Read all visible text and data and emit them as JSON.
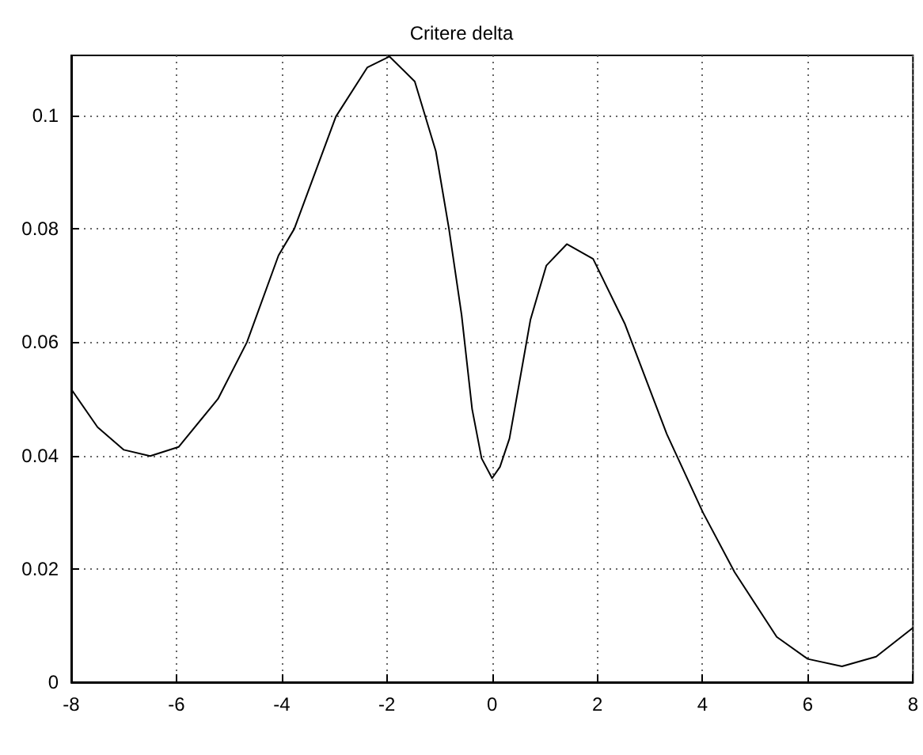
{
  "chart_data": {
    "type": "line",
    "title": "Critere delta",
    "x": [
      -8,
      -7.5,
      -7,
      -6.5,
      -5.96,
      -5.21,
      -4.66,
      -4.06,
      -3.76,
      -2.97,
      -2.37,
      -1.95,
      -1.47,
      -1.07,
      -0.82,
      -0.58,
      -0.38,
      -0.2,
      0,
      0.15,
      0.33,
      0.73,
      1.03,
      1.42,
      1.92,
      2.52,
      3.32,
      4.01,
      4.61,
      5.41,
      6,
      6.65,
      7.3,
      8
    ],
    "series": [
      {
        "color": "#000000",
        "values": [
          0.0517,
          0.045,
          0.041,
          0.0399,
          0.0415,
          0.05,
          0.06,
          0.0753,
          0.08,
          0.0998,
          0.1085,
          0.1104,
          0.106,
          0.0937,
          0.08,
          0.0648,
          0.0482,
          0.0395,
          0.036,
          0.038,
          0.043,
          0.064,
          0.0735,
          0.0773,
          0.0747,
          0.0633,
          0.0438,
          0.0299,
          0.0194,
          0.008,
          0.0041,
          0.0028,
          0.0045,
          0.0096
        ]
      }
    ],
    "xlim": [
      -8,
      8
    ],
    "xticks": [
      -8,
      -6,
      -4,
      -2,
      0,
      2,
      4,
      6,
      8
    ],
    "ylim": [
      0,
      0.1106
    ],
    "yticks": [
      0,
      0.02,
      0.04,
      0.06,
      0.08,
      0.1
    ],
    "grid": true,
    "marker": "none",
    "line_style": "solid"
  }
}
